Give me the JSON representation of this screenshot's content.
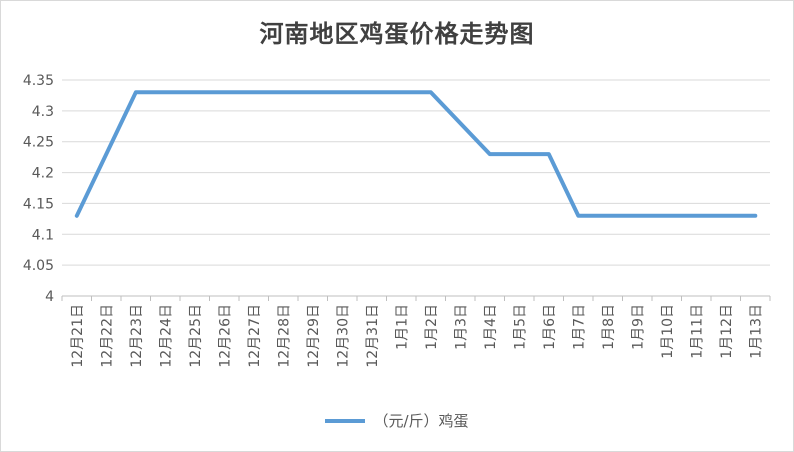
{
  "chart_data": {
    "type": "line",
    "title": "河南地区鸡蛋价格走势图",
    "categories": [
      "12月21日",
      "12月22日",
      "12月23日",
      "12月24日",
      "12月25日",
      "12月26日",
      "12月27日",
      "12月28日",
      "12月29日",
      "12月30日",
      "12月31日",
      "1月1日",
      "1月2日",
      "1月3日",
      "1月4日",
      "1月5日",
      "1月6日",
      "1月7日",
      "1月8日",
      "1月9日",
      "1月10日",
      "1月11日",
      "1月12日",
      "1月13日"
    ],
    "series": [
      {
        "name": "（元/斤）鸡蛋",
        "color": "#5b9bd5",
        "values": [
          4.13,
          null,
          4.33,
          null,
          null,
          null,
          null,
          null,
          null,
          null,
          null,
          null,
          4.33,
          null,
          4.23,
          null,
          4.23,
          4.13,
          null,
          null,
          null,
          null,
          null,
          4.13
        ]
      }
    ],
    "yticks": [
      "4",
      "4.05",
      "4.1",
      "4.15",
      "4.2",
      "4.25",
      "4.3",
      "4.35"
    ],
    "ylim": [
      4,
      4.35
    ],
    "grid": true,
    "legend": "bottom",
    "xlabel": "",
    "ylabel": ""
  }
}
